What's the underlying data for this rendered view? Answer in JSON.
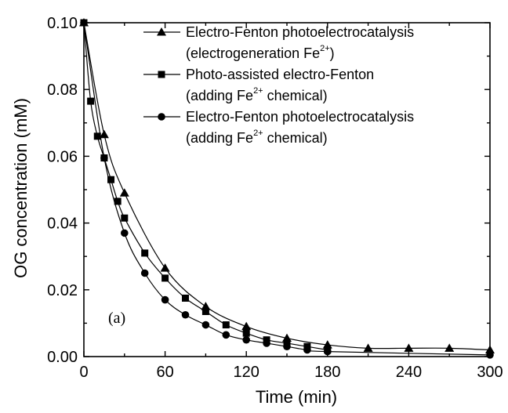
{
  "chart_data": {
    "type": "line",
    "title": "",
    "xlabel": "Time (min)",
    "ylabel": "OG concentration (mM)",
    "xlim": [
      0,
      300
    ],
    "ylim": [
      0,
      0.1
    ],
    "xticks": [
      "0",
      "60",
      "120",
      "180",
      "240",
      "300"
    ],
    "yticks": [
      "0.00",
      "0.02",
      "0.04",
      "0.06",
      "0.08",
      "0.10"
    ],
    "grid": false,
    "legend_position": "top-right",
    "annotation": "(a)",
    "series": [
      {
        "name_line1": "Electro-Fenton photoelectrocatalysis",
        "name_line2_pre": "(electrogeneration Fe",
        "name_line2_sup": "2+",
        "name_line2_post": ")",
        "marker": "triangle",
        "x": [
          0,
          15,
          30,
          60,
          90,
          120,
          150,
          180,
          210,
          240,
          270,
          300
        ],
        "y": [
          0.1,
          0.0665,
          0.049,
          0.0265,
          0.015,
          0.009,
          0.0055,
          0.0035,
          0.0025,
          0.0025,
          0.0025,
          0.002
        ]
      },
      {
        "name_line1": "Photo-assisted electro-Fenton",
        "name_line2_pre": "(adding Fe",
        "name_line2_sup": "2+",
        "name_line2_post": " chemical)",
        "marker": "square",
        "x": [
          0,
          5,
          10,
          15,
          20,
          25,
          30,
          45,
          60,
          75,
          90,
          105,
          120,
          135,
          150,
          165,
          180
        ],
        "y": [
          0.1,
          0.0765,
          0.066,
          0.0595,
          0.053,
          0.0465,
          0.0415,
          0.031,
          0.0235,
          0.0175,
          0.0135,
          0.0095,
          0.007,
          0.005,
          0.004,
          0.003,
          0.002
        ]
      },
      {
        "name_line1": "Electro-Fenton photoelectrocatalysis",
        "name_line2_pre": "(adding Fe",
        "name_line2_sup": "2+",
        "name_line2_post": " chemical)",
        "marker": "circle",
        "x": [
          0,
          15,
          30,
          45,
          60,
          75,
          90,
          105,
          120,
          135,
          150,
          165,
          180,
          300
        ],
        "y": [
          0.1,
          0.0595,
          0.037,
          0.025,
          0.017,
          0.0125,
          0.0095,
          0.0065,
          0.005,
          0.004,
          0.003,
          0.002,
          0.0015,
          0.0005
        ]
      }
    ]
  }
}
